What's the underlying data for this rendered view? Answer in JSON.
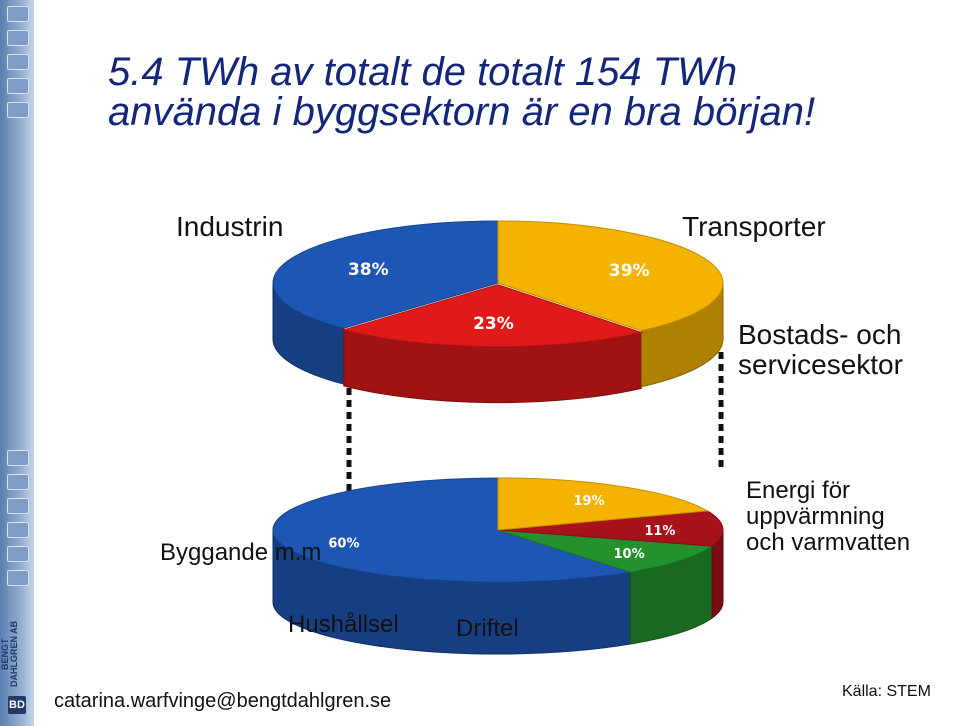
{
  "title": {
    "line1": "5.4 TWh av totalt de totalt 154 TWh",
    "line2": "använda i byggsektorn är en bra början!"
  },
  "colors": {
    "blue": "#1e56b4",
    "red": "#e01919",
    "yellow": "#f4b300",
    "green": "#23922e",
    "darkred": "#a8121a",
    "title": "#13267a"
  },
  "labels": {
    "industrin": "Industrin",
    "transporter": "Transporter",
    "bostads_line1": "Bostads- och",
    "bostads_line2": "servicesektor",
    "byggande": "Byggande m.m",
    "energi_line1": "Energi för",
    "energi_line2": "uppvärmning",
    "energi_line3": "och varmvatten",
    "hushallsel": "Hushållsel",
    "driftel": "Driftel"
  },
  "footer": {
    "email": "catarina.warfvinge@bengtdahlgren.se",
    "source": "Källa: STEM"
  },
  "brand": {
    "name": "BENGT DAHLGREN AB",
    "logo": "BD"
  },
  "chart_data": [
    {
      "type": "pie",
      "title": "",
      "slices": [
        {
          "label": "Industrin",
          "value": 38,
          "value_label": "38%",
          "color": "#1e56b4"
        },
        {
          "label": "Transporter",
          "value": 23,
          "value_label": "23%",
          "color": "#e01919"
        },
        {
          "label": "Bostads- och servicesektor",
          "value": 39,
          "value_label": "39%",
          "color": "#f4b300"
        }
      ]
    },
    {
      "type": "pie",
      "title": "",
      "slices": [
        {
          "label": "Energi för uppvärmning och varmvatten",
          "value": 60,
          "value_label": "60%",
          "color": "#1e56b4"
        },
        {
          "label": "Byggande m.m",
          "value": 10,
          "value_label": "10%",
          "color": "#23922e"
        },
        {
          "label": "Hushållsel",
          "value": 11,
          "value_label": "11%",
          "color": "#a8121a"
        },
        {
          "label": "Driftel",
          "value": 19,
          "value_label": "19%",
          "color": "#f4b300"
        }
      ]
    }
  ]
}
